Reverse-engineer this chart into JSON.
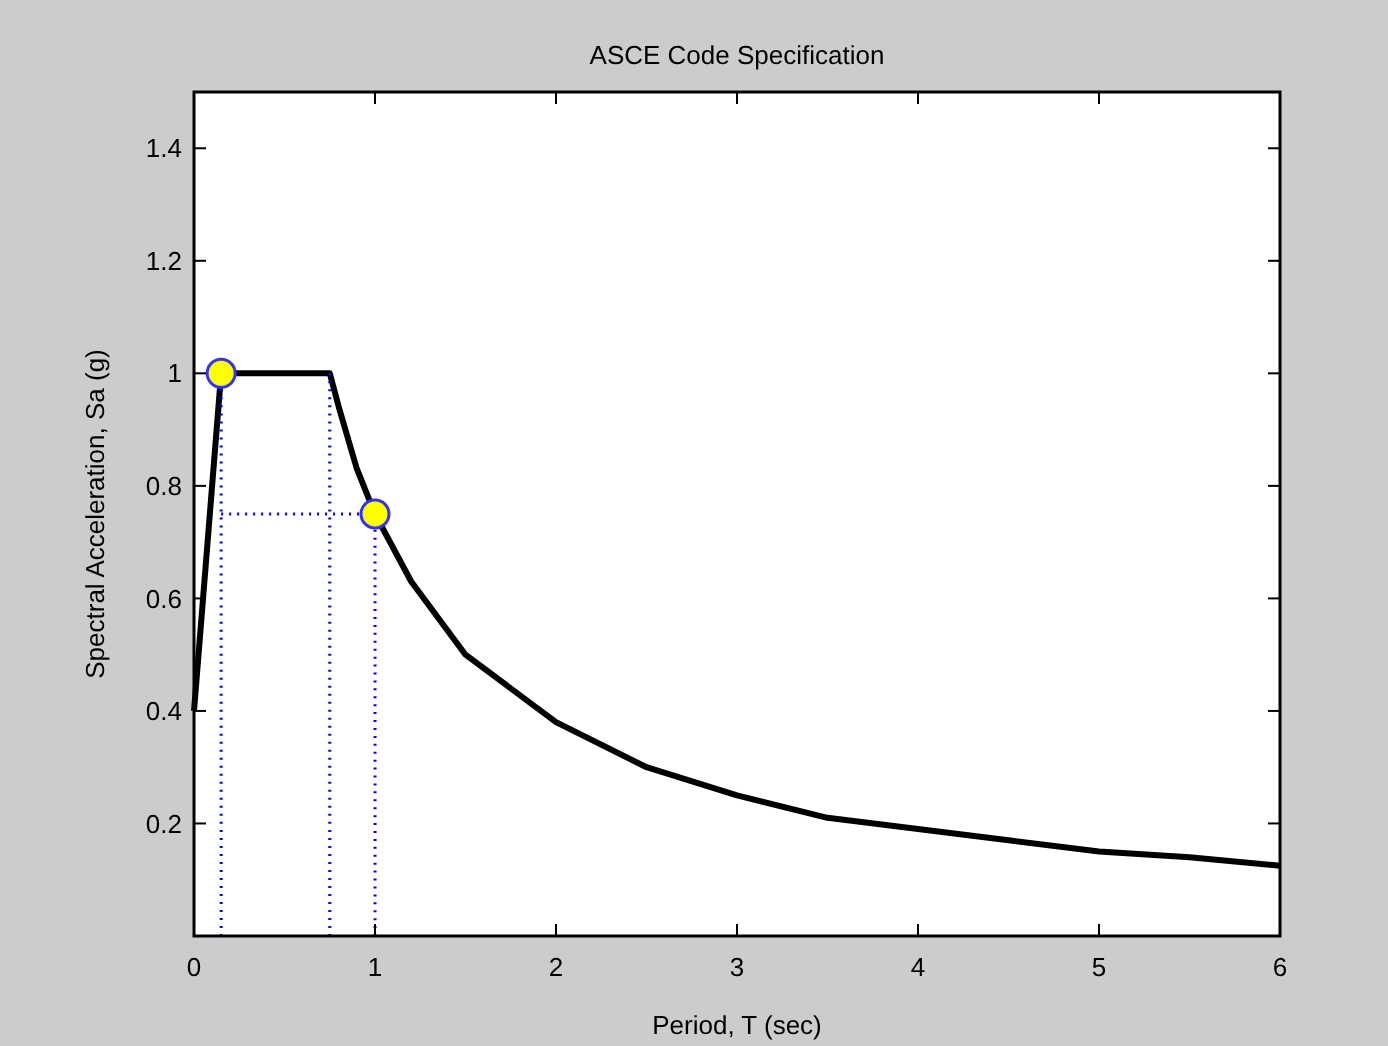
{
  "chart_data": {
    "type": "line",
    "title": "ASCE Code Specification",
    "xlabel": "Period, T (sec)",
    "ylabel": "Spectral Acceleration, Sa (g)",
    "xlim": [
      0,
      6
    ],
    "xticks": [
      0,
      1,
      2,
      3,
      4,
      5,
      6
    ],
    "ylim": [
      0,
      1.5
    ],
    "yticks": [
      0.2,
      0.4,
      0.6,
      0.8,
      1,
      1.2,
      1.4
    ],
    "grid": false,
    "series": [
      {
        "color": "#000000",
        "line_style": "solid",
        "x": [
          0,
          0.15,
          0.75,
          0.8,
          0.9,
          1,
          1.2,
          1.5,
          2,
          2.5,
          3,
          3.5,
          4,
          4.5,
          5,
          5.5,
          6
        ],
        "values": [
          0.4,
          1,
          1,
          0.94,
          0.83,
          0.75,
          0.63,
          0.5,
          0.38,
          0.3,
          0.25,
          0.21,
          0.19,
          0.17,
          0.15,
          0.14,
          0.125
        ]
      },
      {
        "color": "#0000ff",
        "line_style": "dotted",
        "x": [
          0.15,
          0.15
        ],
        "values": [
          0,
          1
        ]
      },
      {
        "color": "#0000ff",
        "line_style": "dotted",
        "x": [
          0.75,
          0.75
        ],
        "values": [
          0,
          1
        ]
      },
      {
        "color": "#0000ff",
        "line_style": "dotted",
        "x": [
          1,
          1
        ],
        "values": [
          0,
          0.75
        ]
      },
      {
        "color": "#0000ff",
        "line_style": "dotted",
        "x": [
          0.15,
          1
        ],
        "values": [
          0.75,
          0.75
        ]
      },
      {
        "type": "scatter",
        "color": "#ffff00",
        "marker": "circle",
        "x": [
          0.15,
          1
        ],
        "values": [
          1,
          0.75
        ]
      }
    ]
  }
}
